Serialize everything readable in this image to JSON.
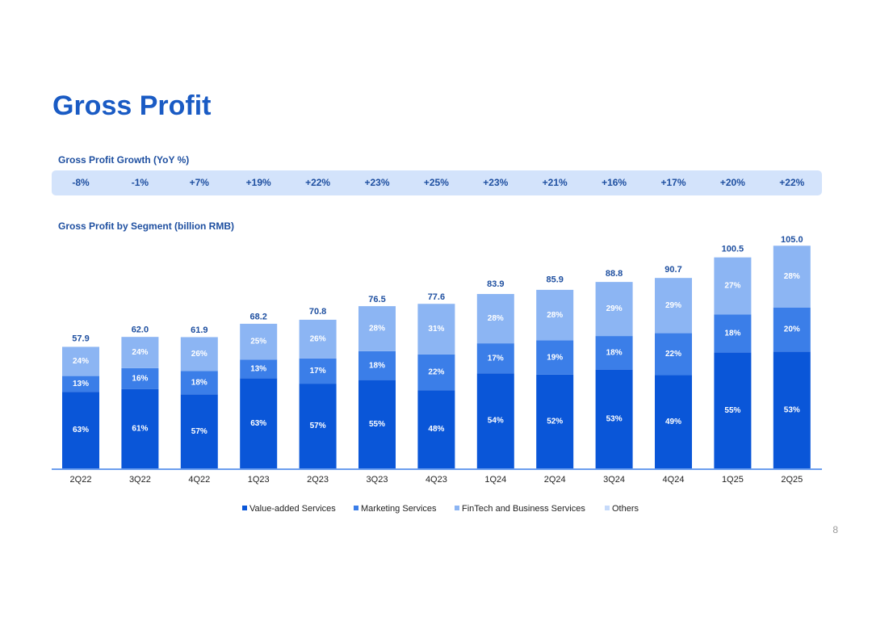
{
  "title": "Gross Profit",
  "page_number": "8",
  "chart_data": {
    "type": "stacked-bar",
    "growth": {
      "title": "Gross Profit Growth (YoY %)",
      "values": [
        -8,
        -1,
        7,
        19,
        22,
        23,
        25,
        23,
        21,
        16,
        17,
        20,
        22
      ],
      "value_labels": [
        "-8%",
        "-1%",
        "+7%",
        "+19%",
        "+22%",
        "+23%",
        "+25%",
        "+23%",
        "+21%",
        "+16%",
        "+17%",
        "+20%",
        "+22%"
      ]
    },
    "title": "Gross Profit by Segment (billion RMB)",
    "categories": [
      "2Q22",
      "3Q22",
      "4Q22",
      "1Q23",
      "2Q23",
      "3Q23",
      "4Q23",
      "1Q24",
      "2Q24",
      "3Q24",
      "4Q24",
      "1Q25",
      "2Q25"
    ],
    "totals": {
      "values": [
        57.9,
        62,
        61.9,
        68.2,
        70.8,
        76.5,
        77.6,
        83.9,
        85.9,
        88.8,
        90.7,
        100.5,
        105
      ],
      "value_labels": [
        "57.9",
        "62.0",
        "61.9",
        "68.2",
        "70.8",
        "76.5",
        "77.6",
        "83.9",
        "85.9",
        "88.8",
        "90.7",
        "100.5",
        "105.0"
      ]
    },
    "series": [
      {
        "name": "Value-added Services",
        "color": "#0a56d8",
        "values": [
          63,
          61,
          57,
          63,
          57,
          55,
          48,
          54,
          52,
          53,
          49,
          55,
          53
        ],
        "value_labels": [
          "63%",
          "61%",
          "57%",
          "63%",
          "57%",
          "55%",
          "48%",
          "54%",
          "52%",
          "53%",
          "49%",
          "55%",
          "53%"
        ]
      },
      {
        "name": "Marketing Services",
        "color": "#3b7ee8",
        "values": [
          13,
          16,
          18,
          13,
          17,
          18,
          22,
          17,
          19,
          18,
          22,
          18,
          20
        ],
        "value_labels": [
          "13%",
          "16%",
          "18%",
          "13%",
          "17%",
          "18%",
          "22%",
          "17%",
          "19%",
          "18%",
          "22%",
          "18%",
          "20%"
        ]
      },
      {
        "name": "FinTech and Business Services",
        "color": "#8cb5f3",
        "values": [
          24,
          24,
          26,
          25,
          26,
          28,
          31,
          28,
          28,
          29,
          29,
          27,
          28
        ],
        "value_labels": [
          "24%",
          "24%",
          "26%",
          "25%",
          "26%",
          "28%",
          "31%",
          "28%",
          "28%",
          "29%",
          "29%",
          "27%",
          "28%"
        ]
      },
      {
        "name": "Others",
        "color": "#c6dafa",
        "values": [
          null,
          null,
          null,
          null,
          null,
          null,
          null,
          null,
          null,
          null,
          null,
          null,
          null
        ]
      }
    ]
  }
}
